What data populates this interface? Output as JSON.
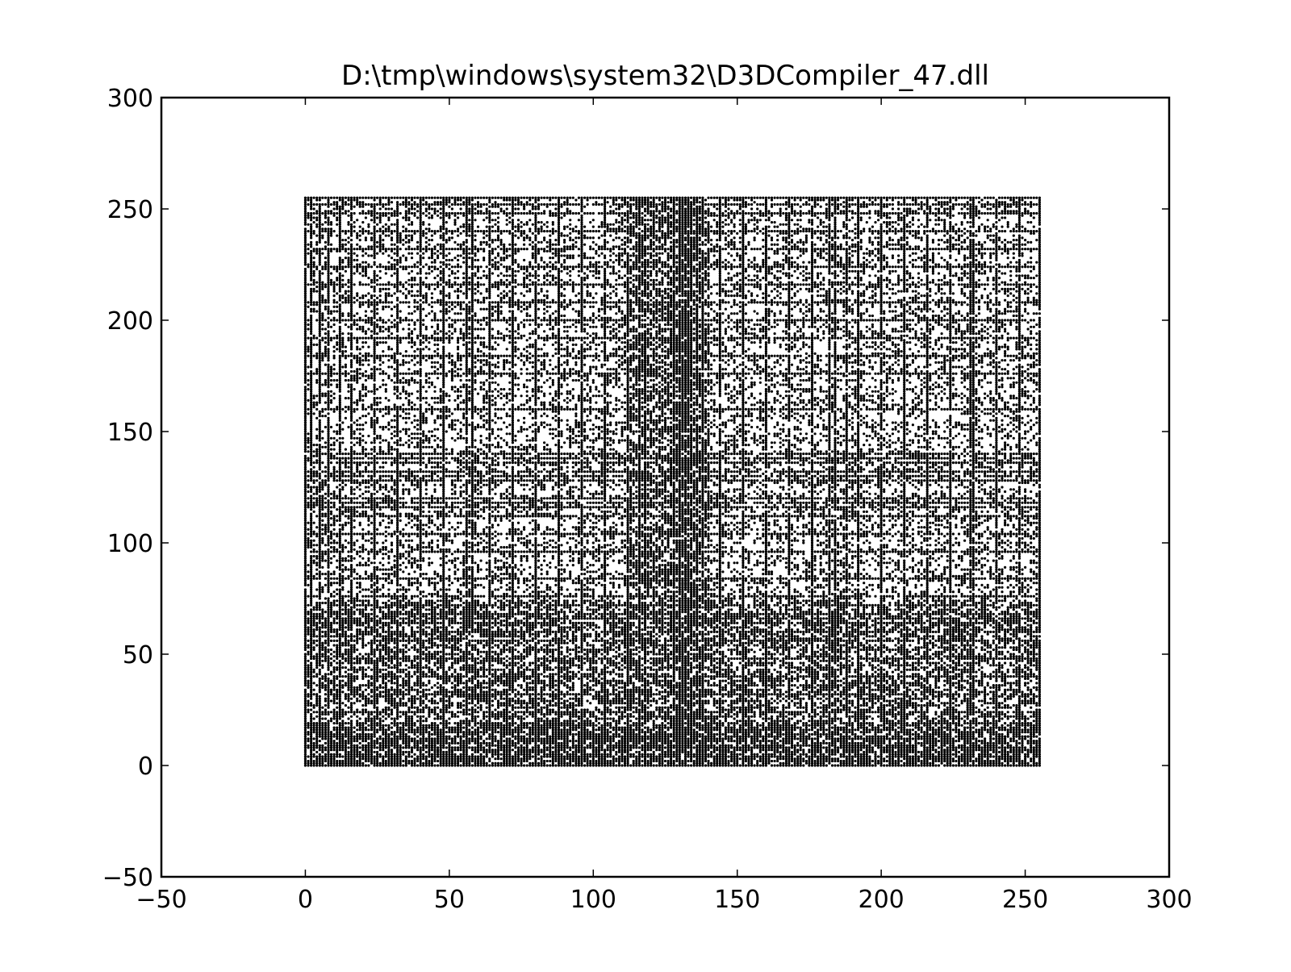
{
  "chart_data": {
    "type": "scatter",
    "title": "D:\\tmp\\windows\\system32\\D3DCompiler_47.dll",
    "xlabel": "",
    "ylabel": "",
    "xlim": [
      -50,
      300
    ],
    "ylim": [
      -50,
      300
    ],
    "xticks": [
      -50,
      0,
      50,
      100,
      150,
      200,
      250,
      300
    ],
    "yticks": [
      -50,
      0,
      50,
      100,
      150,
      200,
      250,
      300
    ],
    "xtick_labels": [
      "−50",
      "0",
      "50",
      "100",
      "150",
      "200",
      "250",
      "300"
    ],
    "ytick_labels": [
      "−50",
      "0",
      "50",
      "100",
      "150",
      "200",
      "250",
      "300"
    ],
    "grid": false,
    "legend": "none",
    "point_color": "#000000",
    "point_domain": {
      "x": [
        0,
        255
      ],
      "y": [
        0,
        255
      ]
    },
    "density_notes": "byte-pair scatter (x = byte, y = next byte); very dense across 0-255; densest for y < 75 and near x 115-140",
    "dense_columns_x": [
      0,
      2,
      5,
      8,
      12,
      16,
      24,
      32,
      40,
      48,
      56,
      58,
      64,
      72,
      80,
      88,
      96,
      104,
      112,
      116,
      118,
      128,
      130,
      131,
      132,
      133,
      134,
      136,
      138,
      144,
      152,
      160,
      168,
      176,
      182,
      184,
      188,
      192,
      200,
      208,
      216,
      224,
      231,
      232,
      240,
      248,
      255
    ],
    "dense_rows_y": [
      0,
      2,
      4,
      8,
      12,
      16,
      24,
      32,
      40,
      48,
      56,
      60,
      64,
      66,
      68,
      72,
      76,
      84,
      96,
      104,
      112,
      116,
      118,
      120,
      128,
      130,
      132,
      136,
      138,
      140,
      160,
      176,
      184,
      192,
      200,
      208,
      216,
      224,
      232,
      240,
      248,
      252,
      255
    ]
  }
}
